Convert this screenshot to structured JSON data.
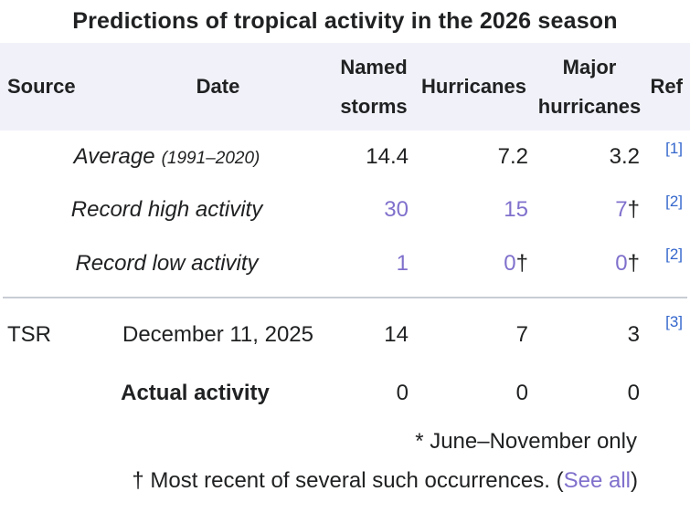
{
  "title": "Predictions of tropical activity in the 2026 season",
  "columns": {
    "source": "Source",
    "date": "Date",
    "named_storms": [
      "Named",
      "storms"
    ],
    "hurricanes": "Hurricanes",
    "major_hurricanes": [
      "Major",
      "hurricanes"
    ],
    "ref": "Ref"
  },
  "climatology_rows": [
    {
      "label": "Average",
      "label_note": "(1991–2020)",
      "named": "14.4",
      "hurricanes": "7.2",
      "major": "3.2",
      "ref": "[1]"
    },
    {
      "label": "Record high activity",
      "named": "30",
      "hurricanes": "15",
      "major": "7",
      "major_suffix": "†",
      "ref": "[2]"
    },
    {
      "label": "Record low activity",
      "named": "1",
      "hurricanes": "0",
      "hurricanes_suffix": "†",
      "major": "0",
      "major_suffix": "†",
      "ref": "[2]"
    }
  ],
  "forecast_row": {
    "source": "TSR",
    "date": "December 11, 2025",
    "named": "14",
    "hurricanes": "7",
    "major": "3",
    "ref": "[3]"
  },
  "actual_row": {
    "label": "Actual activity",
    "named": "0",
    "hurricanes": "0",
    "major": "0"
  },
  "footnotes": {
    "asterisk": "* June–November only",
    "dagger_prefix": "† Most recent of several such occurrences. (",
    "dagger_link": "See all",
    "dagger_suffix": ")"
  },
  "colors": {
    "text": "#202122",
    "link_blue": "#3366cc",
    "visited_purple": "#8070cc",
    "header_background": "#f1f2f9",
    "divider": "#c9ccd3"
  }
}
